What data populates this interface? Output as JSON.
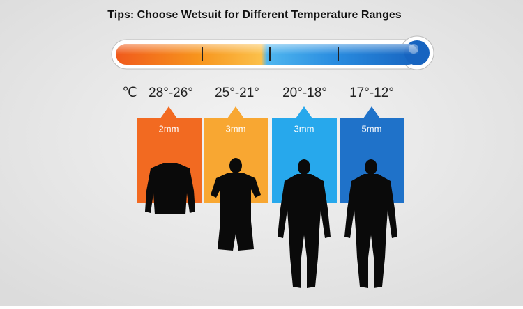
{
  "title": "Tips: Choose Wetsuit for Different Temperature Ranges",
  "unit": "℃",
  "ranges": [
    {
      "temp": "28°-26°",
      "thickness": "2mm"
    },
    {
      "temp": "25°-21°",
      "thickness": "3mm"
    },
    {
      "temp": "20°-18°",
      "thickness": "3mm"
    },
    {
      "temp": "17°-12°",
      "thickness": "5mm"
    }
  ]
}
